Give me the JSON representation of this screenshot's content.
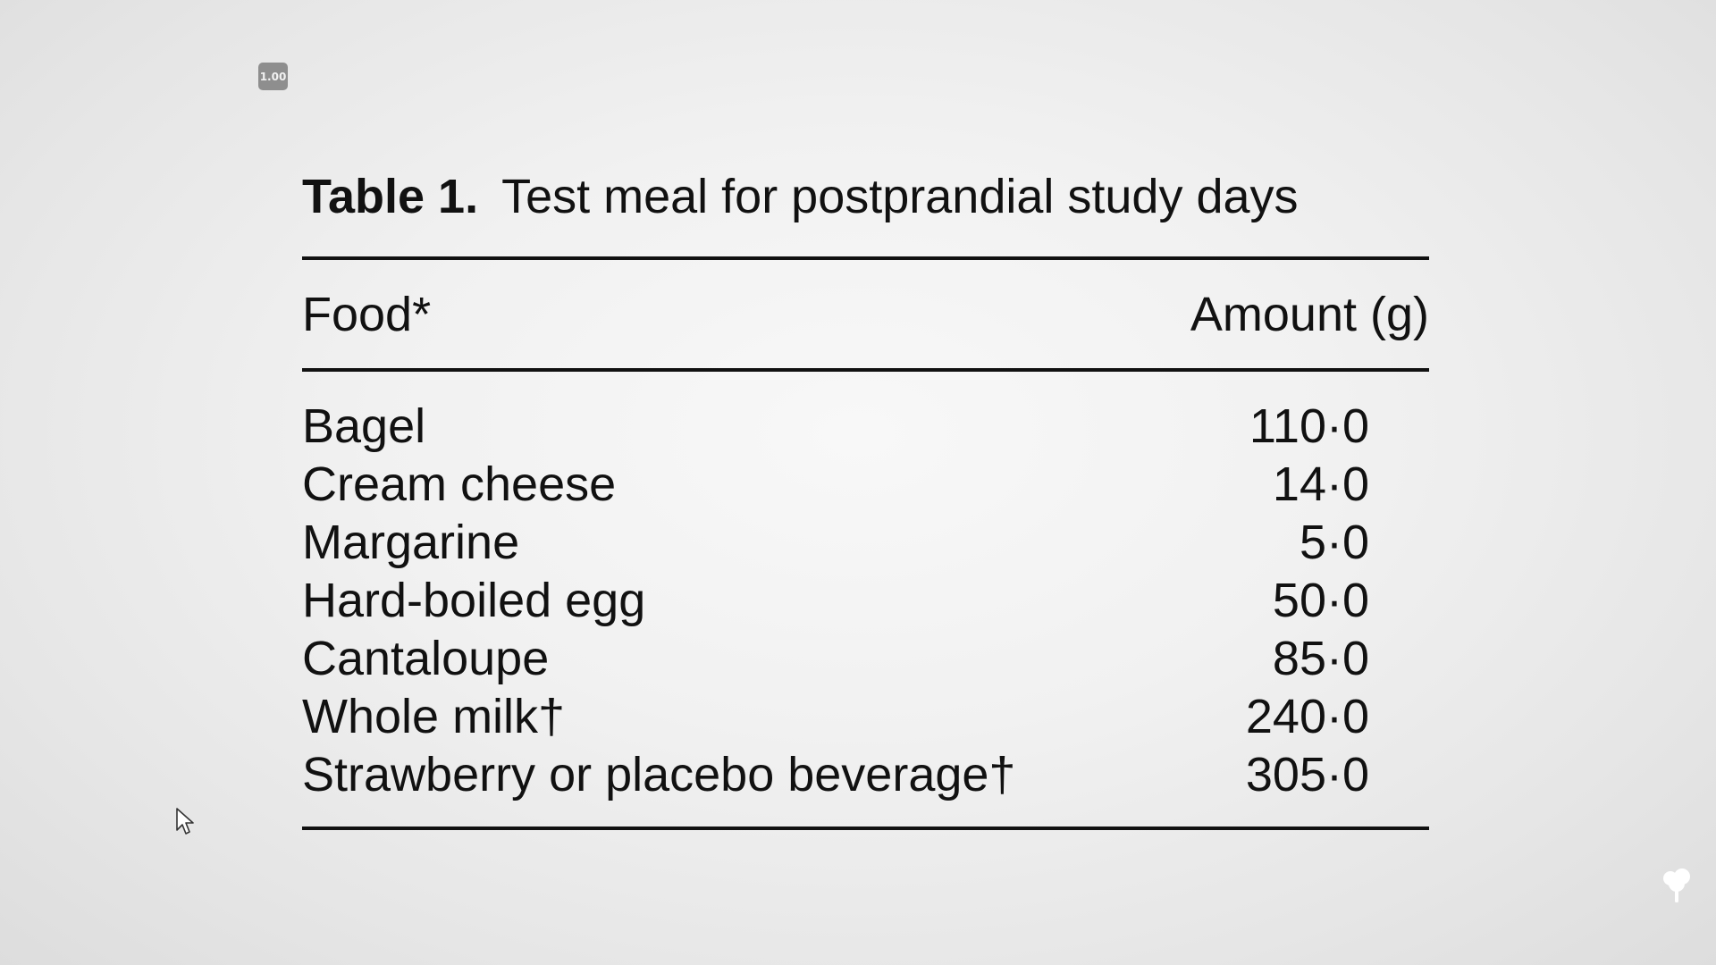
{
  "zoom_badge": "1.00",
  "table": {
    "label": "Table 1.",
    "title": "Test meal for postprandial study days",
    "headers": {
      "food": "Food*",
      "amount": "Amount (g)"
    },
    "rows": [
      {
        "food": "Bagel",
        "amount": "110·0"
      },
      {
        "food": "Cream cheese",
        "amount": "14·0"
      },
      {
        "food": "Margarine",
        "amount": "5·0"
      },
      {
        "food": "Hard-boiled egg",
        "amount": "50·0"
      },
      {
        "food": "Cantaloupe",
        "amount": "85·0"
      },
      {
        "food": "Whole milk†",
        "amount": "240·0"
      },
      {
        "food": "Strawberry or placebo beverage†",
        "amount": "305·0"
      }
    ]
  },
  "icons": {
    "cursor": "mouse-pointer-icon",
    "corner": "tree-icon"
  }
}
